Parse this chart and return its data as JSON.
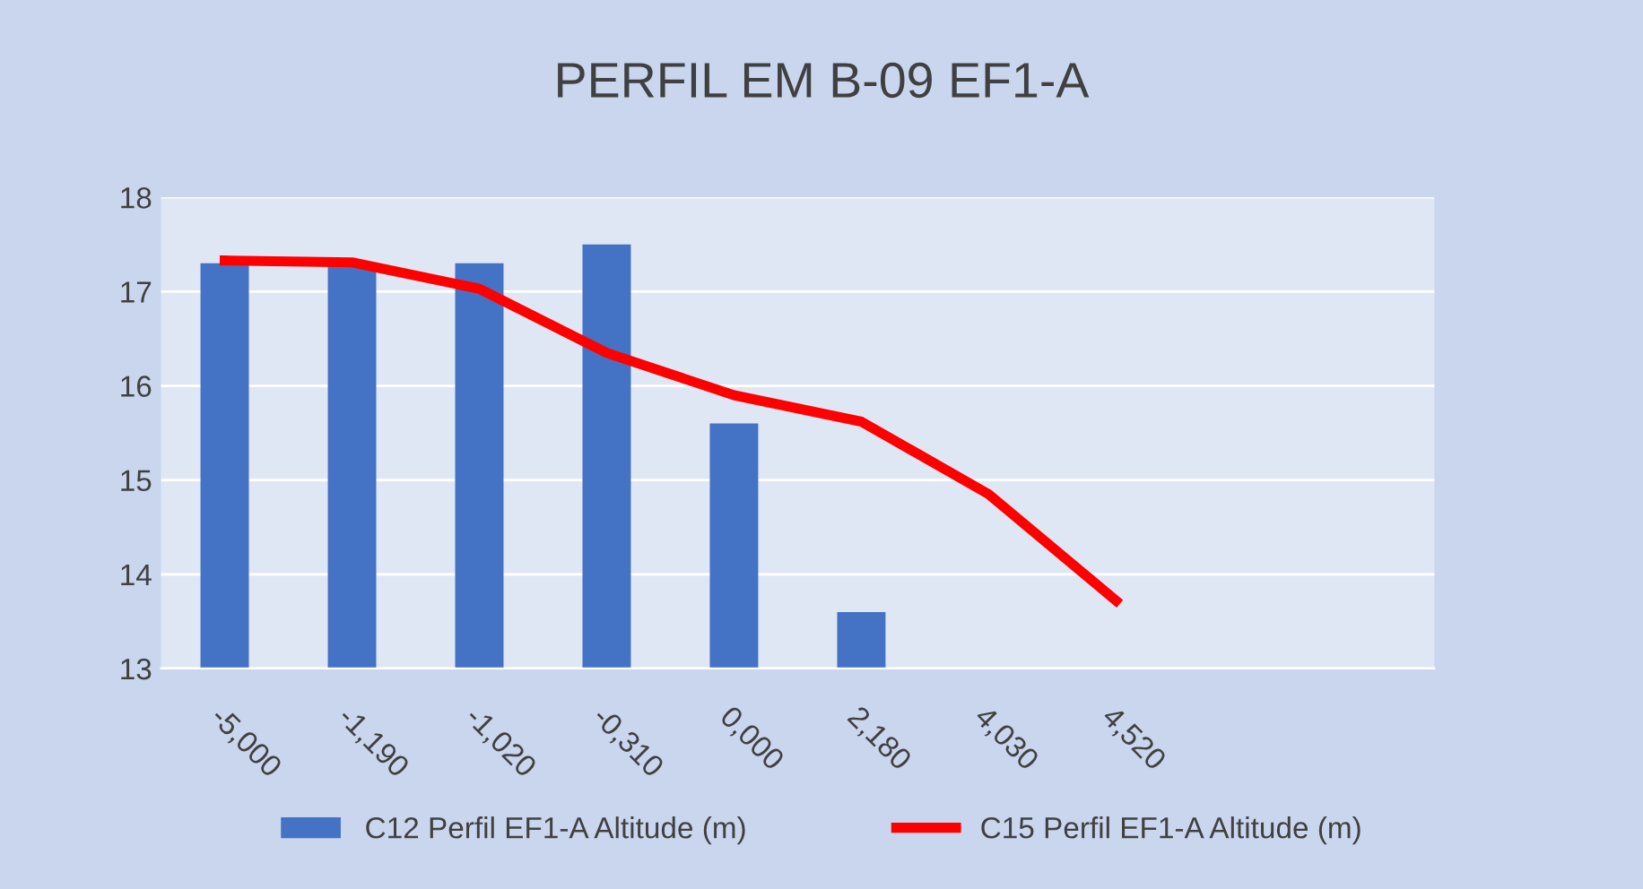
{
  "chart_data": {
    "type": "bar",
    "title": "PERFIL EM B-09 EF1-A",
    "categories": [
      "-5,000",
      "-1,190",
      "-1,020",
      "-0,310",
      "0,000",
      "2,180",
      "4,030",
      "4,520",
      null,
      null
    ],
    "series": [
      {
        "name": "C12 Perfil EF1-A Altitude (m)",
        "color": "#4472c4",
        "values": [
          17.3,
          17.3,
          17.3,
          17.5,
          15.6,
          13.6,
          null,
          null,
          null,
          null
        ]
      },
      {
        "name": "C15 Perfil EF1-A Altitude (m)",
        "type": "line",
        "color": "#ff0000",
        "values": [
          17.33,
          17.31,
          17.03,
          16.35,
          15.9,
          15.62,
          14.85,
          13.72,
          null,
          null
        ]
      }
    ],
    "ylim": [
      13,
      18
    ],
    "yticks": [
      13,
      14,
      15,
      16,
      17,
      18
    ],
    "grid": "y",
    "legend": "bottom"
  }
}
